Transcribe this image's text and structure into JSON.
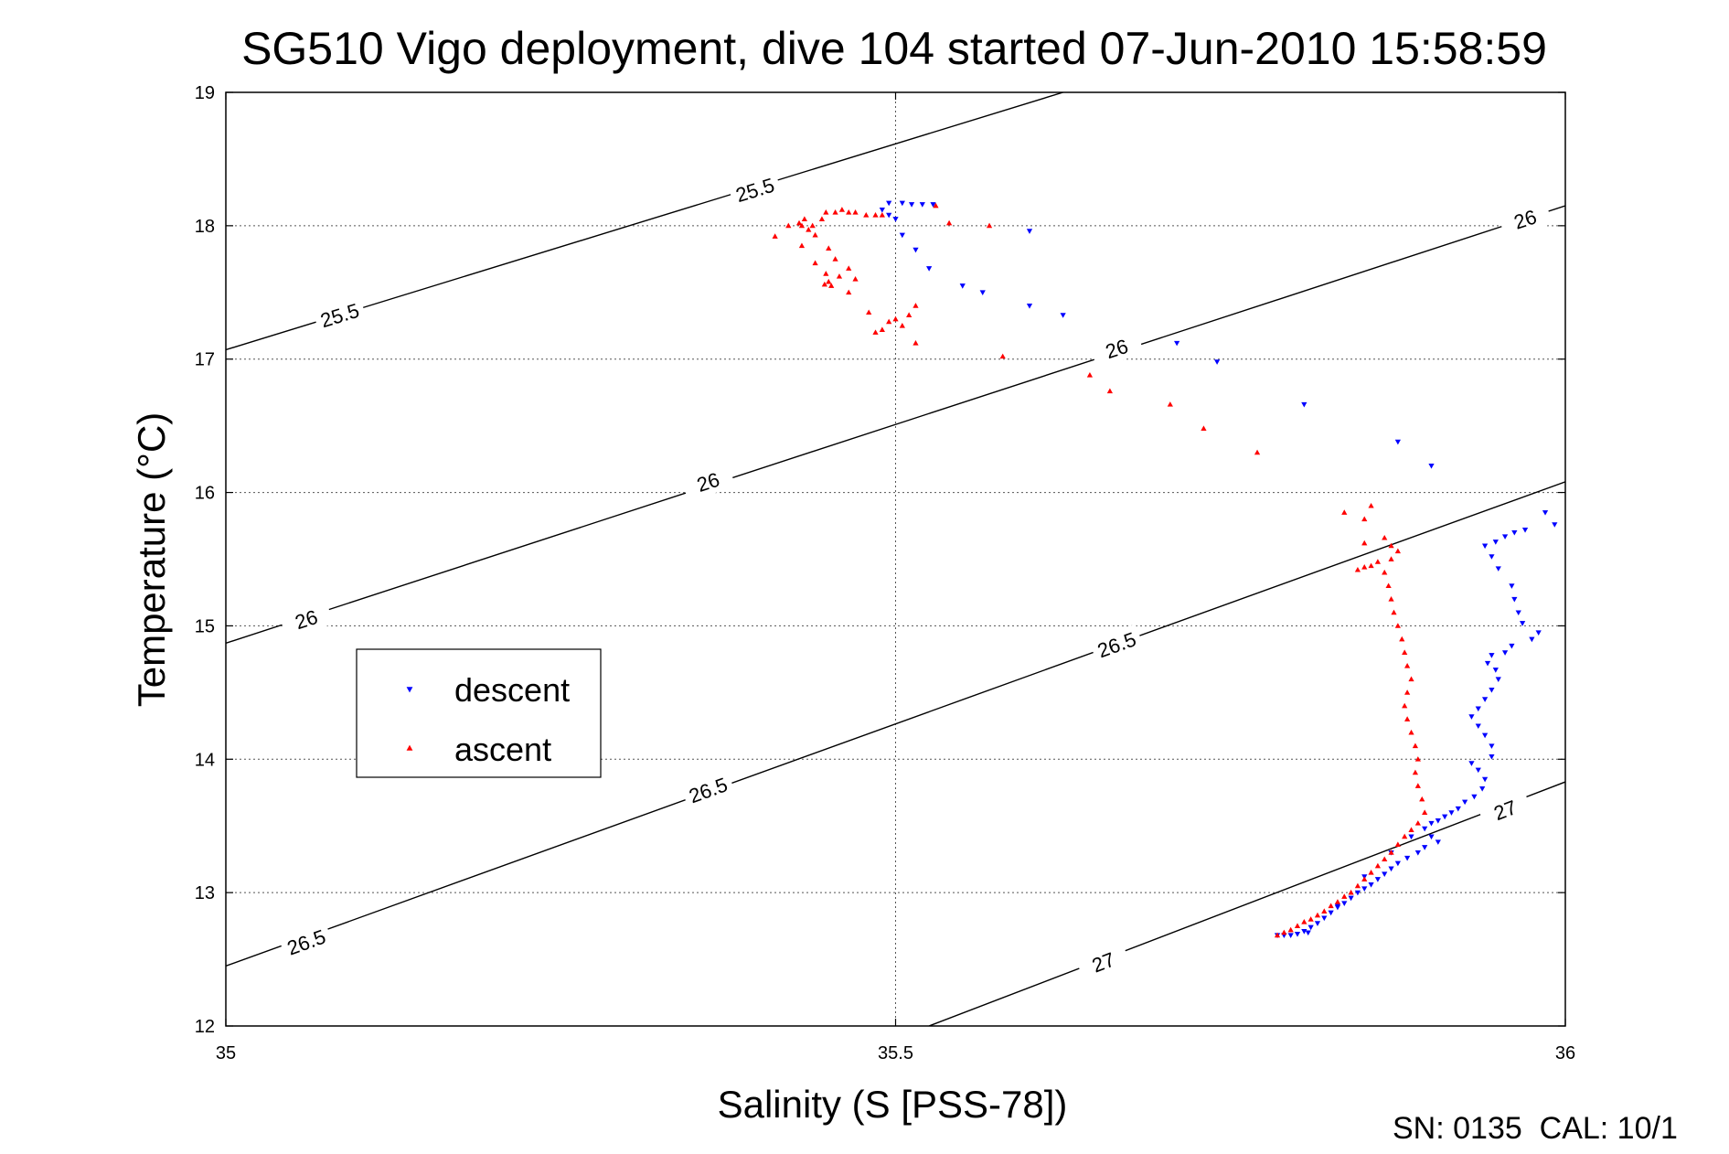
{
  "chart_data": {
    "type": "scatter",
    "title": "SG510 Vigo deployment, dive 104 started 07-Jun-2010 15:58:59",
    "xlabel": "Salinity (S [PSS-78])",
    "ylabel": "Temperature (°C)",
    "xlim": [
      35,
      36
    ],
    "ylim": [
      12,
      19
    ],
    "xticks": [
      35,
      35.5,
      36
    ],
    "xtick_labels": [
      "35",
      "35.5",
      "36"
    ],
    "yticks": [
      12,
      13,
      14,
      15,
      16,
      17,
      18,
      19
    ],
    "ytick_labels": [
      "12",
      "13",
      "14",
      "15",
      "16",
      "17",
      "18",
      "19"
    ],
    "grid": true,
    "legend_position": "middle-left",
    "footer": "SN: 0135  CAL: 10/1",
    "contours": [
      {
        "label": "25.5",
        "points": [
          [
            35.0,
            17.07
          ],
          [
            35.625,
            19.0
          ]
        ],
        "label_positions": [
          [
            35.085,
            17.33
          ],
          [
            35.395,
            18.27
          ]
        ]
      },
      {
        "label": "26",
        "points": [
          [
            35.0,
            14.87
          ],
          [
            36.0,
            18.15
          ]
        ],
        "label_positions": [
          [
            35.06,
            15.05
          ],
          [
            35.36,
            16.08
          ],
          [
            35.665,
            17.08
          ],
          [
            35.97,
            18.05
          ]
        ]
      },
      {
        "label": "26.5",
        "points": [
          [
            35.0,
            12.45
          ],
          [
            36.0,
            16.08
          ]
        ],
        "label_positions": [
          [
            35.06,
            12.63
          ],
          [
            35.36,
            13.77
          ],
          [
            35.665,
            14.86
          ]
        ]
      },
      {
        "label": "27",
        "points": [
          [
            35.525,
            12.0
          ],
          [
            36.0,
            13.83
          ]
        ],
        "label_positions": [
          [
            35.655,
            12.48
          ],
          [
            35.955,
            13.62
          ]
        ]
      }
    ],
    "series": [
      {
        "name": "descent",
        "color": "#0000ff",
        "marker": "triangle-down",
        "points": [
          [
            35.495,
            18.17
          ],
          [
            35.505,
            18.17
          ],
          [
            35.512,
            18.16
          ],
          [
            35.52,
            18.16
          ],
          [
            35.528,
            18.16
          ],
          [
            35.49,
            18.12
          ],
          [
            35.495,
            18.08
          ],
          [
            35.5,
            18.05
          ],
          [
            35.505,
            17.93
          ],
          [
            35.515,
            17.82
          ],
          [
            35.525,
            17.68
          ],
          [
            35.55,
            17.55
          ],
          [
            35.565,
            17.5
          ],
          [
            35.6,
            17.96
          ],
          [
            35.6,
            17.4
          ],
          [
            35.625,
            17.33
          ],
          [
            35.71,
            17.12
          ],
          [
            35.74,
            16.98
          ],
          [
            35.805,
            16.66
          ],
          [
            35.875,
            16.38
          ],
          [
            35.9,
            16.2
          ],
          [
            35.985,
            15.85
          ],
          [
            35.992,
            15.76
          ],
          [
            35.97,
            15.72
          ],
          [
            35.962,
            15.7
          ],
          [
            35.955,
            15.67
          ],
          [
            35.948,
            15.63
          ],
          [
            35.94,
            15.6
          ],
          [
            35.945,
            15.52
          ],
          [
            35.95,
            15.43
          ],
          [
            35.96,
            15.3
          ],
          [
            35.962,
            15.2
          ],
          [
            35.965,
            15.1
          ],
          [
            35.968,
            15.02
          ],
          [
            35.98,
            14.95
          ],
          [
            35.975,
            14.9
          ],
          [
            35.96,
            14.85
          ],
          [
            35.955,
            14.8
          ],
          [
            35.945,
            14.78
          ],
          [
            35.942,
            14.72
          ],
          [
            35.948,
            14.67
          ],
          [
            35.95,
            14.6
          ],
          [
            35.945,
            14.52
          ],
          [
            35.94,
            14.45
          ],
          [
            35.935,
            14.38
          ],
          [
            35.93,
            14.32
          ],
          [
            35.935,
            14.25
          ],
          [
            35.94,
            14.18
          ],
          [
            35.945,
            14.1
          ],
          [
            35.945,
            14.02
          ],
          [
            35.93,
            13.97
          ],
          [
            35.935,
            13.92
          ],
          [
            35.94,
            13.85
          ],
          [
            35.938,
            13.78
          ],
          [
            35.932,
            13.72
          ],
          [
            35.925,
            13.68
          ],
          [
            35.92,
            13.63
          ],
          [
            35.915,
            13.6
          ],
          [
            35.91,
            13.57
          ],
          [
            35.905,
            13.54
          ],
          [
            35.9,
            13.52
          ],
          [
            35.895,
            13.48
          ],
          [
            35.9,
            13.42
          ],
          [
            35.905,
            13.38
          ],
          [
            35.895,
            13.34
          ],
          [
            35.89,
            13.3
          ],
          [
            35.882,
            13.26
          ],
          [
            35.875,
            13.22
          ],
          [
            35.87,
            13.18
          ],
          [
            35.865,
            13.14
          ],
          [
            35.86,
            13.1
          ],
          [
            35.855,
            13.06
          ],
          [
            35.85,
            13.03
          ],
          [
            35.845,
            13.0
          ],
          [
            35.84,
            12.96
          ],
          [
            35.835,
            12.92
          ],
          [
            35.83,
            12.89
          ],
          [
            35.825,
            12.85
          ],
          [
            35.82,
            12.81
          ],
          [
            35.815,
            12.77
          ],
          [
            35.81,
            12.74
          ],
          [
            35.805,
            12.71
          ],
          [
            35.8,
            12.69
          ],
          [
            35.795,
            12.68
          ],
          [
            35.79,
            12.68
          ],
          [
            35.785,
            12.68
          ],
          [
            35.808,
            12.7
          ],
          [
            35.83,
            12.9
          ],
          [
            35.85,
            13.12
          ],
          [
            35.87,
            13.3
          ],
          [
            35.885,
            13.42
          ]
        ]
      },
      {
        "name": "ascent",
        "color": "#ff0000",
        "marker": "triangle-up",
        "points": [
          [
            35.785,
            12.68
          ],
          [
            35.79,
            12.7
          ],
          [
            35.795,
            12.72
          ],
          [
            35.8,
            12.75
          ],
          [
            35.805,
            12.78
          ],
          [
            35.81,
            12.8
          ],
          [
            35.815,
            12.83
          ],
          [
            35.82,
            12.86
          ],
          [
            35.825,
            12.9
          ],
          [
            35.83,
            12.93
          ],
          [
            35.835,
            12.97
          ],
          [
            35.84,
            13.0
          ],
          [
            35.845,
            13.05
          ],
          [
            35.85,
            13.1
          ],
          [
            35.855,
            13.15
          ],
          [
            35.86,
            13.2
          ],
          [
            35.865,
            13.25
          ],
          [
            35.87,
            13.3
          ],
          [
            35.875,
            13.36
          ],
          [
            35.88,
            13.42
          ],
          [
            35.885,
            13.47
          ],
          [
            35.89,
            13.52
          ],
          [
            35.895,
            13.6
          ],
          [
            35.893,
            13.7
          ],
          [
            35.89,
            13.8
          ],
          [
            35.888,
            13.9
          ],
          [
            35.89,
            14.0
          ],
          [
            35.888,
            14.1
          ],
          [
            35.885,
            14.2
          ],
          [
            35.882,
            14.3
          ],
          [
            35.88,
            14.4
          ],
          [
            35.882,
            14.5
          ],
          [
            35.885,
            14.6
          ],
          [
            35.882,
            14.7
          ],
          [
            35.88,
            14.8
          ],
          [
            35.878,
            14.9
          ],
          [
            35.875,
            15.0
          ],
          [
            35.872,
            15.1
          ],
          [
            35.87,
            15.2
          ],
          [
            35.868,
            15.3
          ],
          [
            35.865,
            15.4
          ],
          [
            35.87,
            15.5
          ],
          [
            35.875,
            15.56
          ],
          [
            35.87,
            15.6
          ],
          [
            35.865,
            15.66
          ],
          [
            35.86,
            15.48
          ],
          [
            35.855,
            15.45
          ],
          [
            35.85,
            15.44
          ],
          [
            35.845,
            15.42
          ],
          [
            35.85,
            15.62
          ],
          [
            35.855,
            15.9
          ],
          [
            35.85,
            15.8
          ],
          [
            35.835,
            15.85
          ],
          [
            35.77,
            16.3
          ],
          [
            35.73,
            16.48
          ],
          [
            35.705,
            16.66
          ],
          [
            35.66,
            16.76
          ],
          [
            35.645,
            16.88
          ],
          [
            35.58,
            17.02
          ],
          [
            35.515,
            17.12
          ],
          [
            35.505,
            17.25
          ],
          [
            35.495,
            17.28
          ],
          [
            35.49,
            17.22
          ],
          [
            35.485,
            17.2
          ],
          [
            35.5,
            17.3
          ],
          [
            35.51,
            17.33
          ],
          [
            35.515,
            17.4
          ],
          [
            35.48,
            17.35
          ],
          [
            35.465,
            17.5
          ],
          [
            35.47,
            17.6
          ],
          [
            35.465,
            17.68
          ],
          [
            35.455,
            17.75
          ],
          [
            35.45,
            17.83
          ],
          [
            35.44,
            17.93
          ],
          [
            35.435,
            17.97
          ],
          [
            35.43,
            18.0
          ],
          [
            35.428,
            18.02
          ],
          [
            35.432,
            18.05
          ],
          [
            35.43,
            17.85
          ],
          [
            35.44,
            17.72
          ],
          [
            35.448,
            17.64
          ],
          [
            35.45,
            17.58
          ],
          [
            35.447,
            17.56
          ],
          [
            35.452,
            17.55
          ],
          [
            35.458,
            17.62
          ],
          [
            35.42,
            18.0
          ],
          [
            35.41,
            17.92
          ],
          [
            35.438,
            18.0
          ],
          [
            35.445,
            18.05
          ],
          [
            35.448,
            18.1
          ],
          [
            35.455,
            18.1
          ],
          [
            35.46,
            18.12
          ],
          [
            35.465,
            18.1
          ],
          [
            35.47,
            18.1
          ],
          [
            35.478,
            18.08
          ],
          [
            35.485,
            18.08
          ],
          [
            35.49,
            18.08
          ],
          [
            35.53,
            18.15
          ],
          [
            35.54,
            18.02
          ],
          [
            35.57,
            18.0
          ]
        ]
      }
    ]
  }
}
